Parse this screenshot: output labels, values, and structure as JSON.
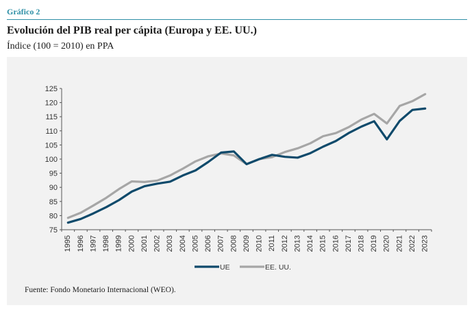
{
  "header": {
    "figure_label": "Gráfico 2",
    "title": "Evolución del PIB real per cápita (Europa y EE. UU.)",
    "subtitle": "Índice (100 = 2010) en PPA"
  },
  "footer": {
    "source": "Fuente: Fondo Monetario Internacional (WEO)."
  },
  "colors": {
    "accent": "#2e8fa6",
    "ue": "#0f4a6b",
    "usa": "#a6a6a6",
    "panel": "#f2f2f2"
  },
  "chart_data": {
    "type": "line",
    "title": "",
    "xlabel": "",
    "ylabel": "",
    "ylim": [
      75,
      125
    ],
    "yticks": [
      75,
      80,
      85,
      90,
      95,
      100,
      105,
      110,
      115,
      120,
      125
    ],
    "grid": false,
    "legend": "bottom-center",
    "x": [
      "1995",
      "1996",
      "1997",
      "1998",
      "1999",
      "2000",
      "2001",
      "2002",
      "2003",
      "2004",
      "2005",
      "2006",
      "2007",
      "2008",
      "2009",
      "2010",
      "2011",
      "2012",
      "2013",
      "2014",
      "2015",
      "2016",
      "2017",
      "2018",
      "2019",
      "2020",
      "2021",
      "2022",
      "2023"
    ],
    "series": [
      {
        "name": "UE",
        "color": "#0f4a6b",
        "values": [
          77.5,
          78.8,
          80.8,
          83.0,
          85.5,
          88.5,
          90.4,
          91.3,
          92.0,
          94.2,
          96.0,
          99.0,
          102.3,
          102.7,
          98.2,
          100.0,
          101.5,
          100.8,
          100.5,
          102.1,
          104.4,
          106.4,
          109.2,
          111.5,
          113.4,
          107.0,
          113.5,
          117.4,
          117.9
        ]
      },
      {
        "name": "EE. UU.",
        "color": "#a6a6a6",
        "values": [
          79.2,
          81.0,
          83.6,
          86.3,
          89.4,
          92.1,
          91.9,
          92.4,
          94.2,
          96.6,
          99.2,
          101.0,
          102.0,
          101.3,
          98.2,
          100.0,
          100.7,
          102.5,
          103.8,
          105.6,
          108.1,
          109.2,
          111.3,
          114.0,
          116.0,
          112.6,
          118.8,
          120.5,
          123.0
        ]
      }
    ]
  }
}
